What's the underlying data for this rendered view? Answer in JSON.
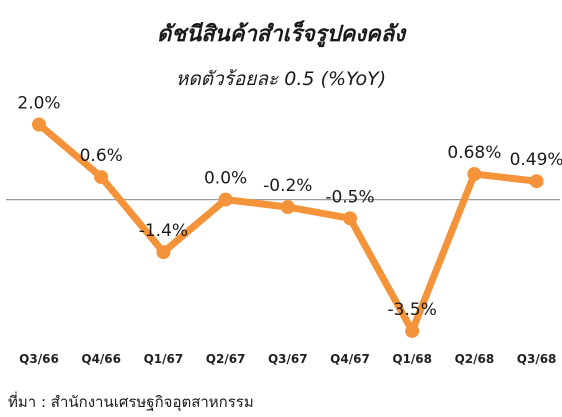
{
  "chart_data": {
    "type": "line",
    "title": "ดัชนีสินค้าสำเร็จรูปคงคลัง",
    "subtitle": "หดตัวร้อยละ 0.5 (%YoY)",
    "categories": [
      "Q3/66",
      "Q4/66",
      "Q1/67",
      "Q2/67",
      "Q3/67",
      "Q4/67",
      "Q1/68",
      "Q2/68",
      "Q3/68"
    ],
    "values": [
      2.0,
      0.6,
      -1.4,
      0.0,
      -0.2,
      -0.5,
      -3.5,
      0.68,
      0.49
    ],
    "data_labels": [
      "2.0%",
      "0.6%",
      "-1.4%",
      "0.0%",
      "-0.2%",
      "-0.5%",
      "-3.5%",
      "0.68%",
      "0.49%"
    ],
    "ylim": [
      -3.9,
      2.2
    ],
    "grid": false,
    "legend": "none",
    "line_color": "#F5933A"
  },
  "source": "ที่มา : สำนักงานเศรษฐกิจอุตสาหกรรม"
}
